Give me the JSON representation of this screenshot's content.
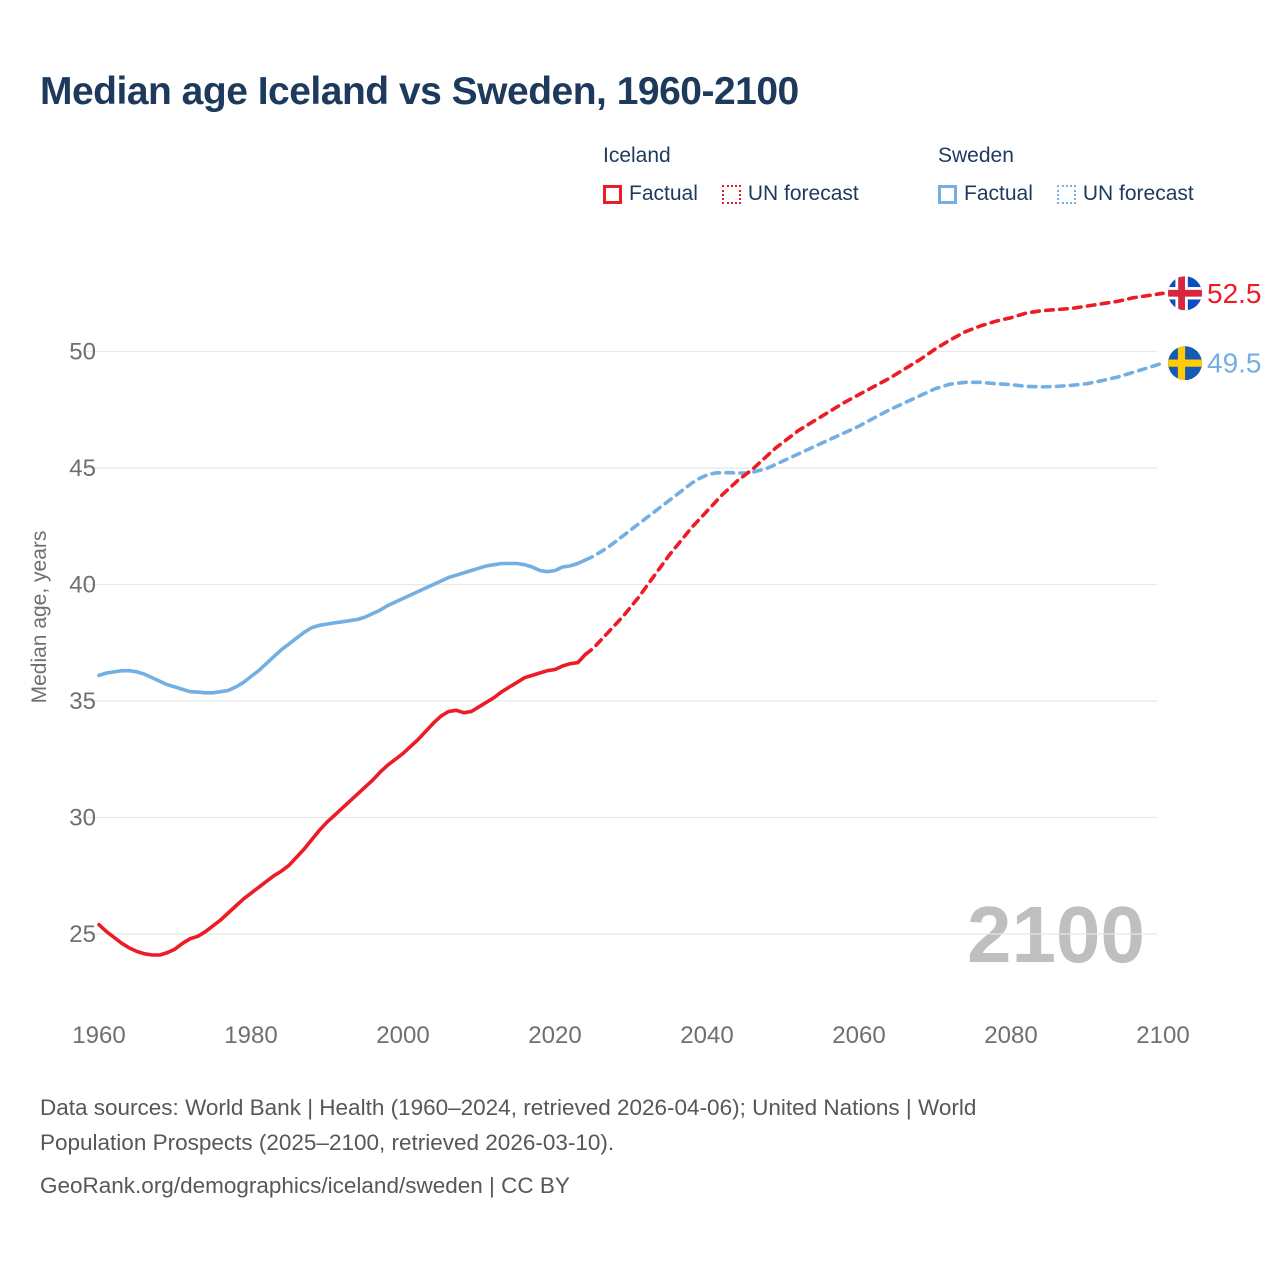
{
  "header": {
    "title": "Median age Iceland vs Sweden, 1960-2100"
  },
  "legend": {
    "groups": [
      {
        "name": "Iceland",
        "color": "#ec1c26",
        "items": [
          {
            "label": "Factual",
            "style": "solid"
          },
          {
            "label": "UN forecast",
            "style": "dashed"
          }
        ]
      },
      {
        "name": "Sweden",
        "color": "#74afe3",
        "items": [
          {
            "label": "Factual",
            "style": "solid"
          },
          {
            "label": "UN forecast",
            "style": "dashed"
          }
        ]
      }
    ]
  },
  "colors": {
    "accent_navy": "#1d3a5c",
    "tick_gray": "#6f6f6f",
    "grid": "#e8e8e8",
    "watermark": "#bfbfbf",
    "iceland_red": "#ec1c26",
    "sweden_blue": "#74afe3"
  },
  "chart_data": {
    "type": "line",
    "title": "Median age Iceland vs Sweden, 1960-2100",
    "xlabel": "",
    "ylabel": "Median age, years",
    "xlim": [
      1955,
      2113
    ],
    "ylim": [
      22.5,
      53.5
    ],
    "x_ticks": [
      1960,
      1980,
      2000,
      2020,
      2040,
      2060,
      2080,
      2100
    ],
    "y_ticks": [
      25,
      30,
      35,
      40,
      45,
      50
    ],
    "grid": "horizontal",
    "legend_position": "top",
    "watermark": "2100",
    "series": [
      {
        "name": "Iceland Factual",
        "country": "Iceland",
        "kind": "Factual",
        "color": "#ec1c26",
        "dash": "solid",
        "points": [
          [
            1960,
            25.4
          ],
          [
            1961,
            25.1
          ],
          [
            1962,
            24.85
          ],
          [
            1963,
            24.6
          ],
          [
            1964,
            24.4
          ],
          [
            1965,
            24.25
          ],
          [
            1966,
            24.15
          ],
          [
            1967,
            24.1
          ],
          [
            1968,
            24.1
          ],
          [
            1969,
            24.2
          ],
          [
            1970,
            24.35
          ],
          [
            1971,
            24.6
          ],
          [
            1972,
            24.8
          ],
          [
            1973,
            24.9
          ],
          [
            1974,
            25.1
          ],
          [
            1975,
            25.35
          ],
          [
            1976,
            25.6
          ],
          [
            1977,
            25.9
          ],
          [
            1978,
            26.2
          ],
          [
            1979,
            26.5
          ],
          [
            1980,
            26.75
          ],
          [
            1981,
            27.0
          ],
          [
            1982,
            27.25
          ],
          [
            1983,
            27.5
          ],
          [
            1984,
            27.7
          ],
          [
            1985,
            27.95
          ],
          [
            1986,
            28.3
          ],
          [
            1987,
            28.65
          ],
          [
            1988,
            29.05
          ],
          [
            1989,
            29.45
          ],
          [
            1990,
            29.8
          ],
          [
            1991,
            30.1
          ],
          [
            1992,
            30.4
          ],
          [
            1993,
            30.7
          ],
          [
            1994,
            31.0
          ],
          [
            1995,
            31.3
          ],
          [
            1996,
            31.6
          ],
          [
            1997,
            31.95
          ],
          [
            1998,
            32.25
          ],
          [
            1999,
            32.5
          ],
          [
            2000,
            32.75
          ],
          [
            2001,
            33.05
          ],
          [
            2002,
            33.35
          ],
          [
            2003,
            33.7
          ],
          [
            2004,
            34.05
          ],
          [
            2005,
            34.35
          ],
          [
            2006,
            34.55
          ],
          [
            2007,
            34.6
          ],
          [
            2008,
            34.5
          ],
          [
            2009,
            34.55
          ],
          [
            2010,
            34.75
          ],
          [
            2011,
            34.95
          ],
          [
            2012,
            35.15
          ],
          [
            2013,
            35.4
          ],
          [
            2014,
            35.6
          ],
          [
            2015,
            35.8
          ],
          [
            2016,
            36.0
          ],
          [
            2017,
            36.1
          ],
          [
            2018,
            36.2
          ],
          [
            2019,
            36.3
          ],
          [
            2020,
            36.35
          ],
          [
            2021,
            36.5
          ],
          [
            2022,
            36.6
          ],
          [
            2023,
            36.65
          ],
          [
            2024,
            37.0
          ]
        ]
      },
      {
        "name": "Iceland UN forecast",
        "country": "Iceland",
        "kind": "UN forecast",
        "color": "#ec1c26",
        "dash": "dashed",
        "points": [
          [
            2025,
            37.25
          ],
          [
            2026,
            37.6
          ],
          [
            2027,
            37.95
          ],
          [
            2028,
            38.3
          ],
          [
            2029,
            38.65
          ],
          [
            2030,
            39.05
          ],
          [
            2031,
            39.45
          ],
          [
            2032,
            39.9
          ],
          [
            2033,
            40.35
          ],
          [
            2034,
            40.8
          ],
          [
            2035,
            41.25
          ],
          [
            2036,
            41.65
          ],
          [
            2037,
            42.05
          ],
          [
            2038,
            42.45
          ],
          [
            2039,
            42.8
          ],
          [
            2040,
            43.15
          ],
          [
            2041,
            43.5
          ],
          [
            2042,
            43.85
          ],
          [
            2043,
            44.15
          ],
          [
            2044,
            44.45
          ],
          [
            2045,
            44.7
          ],
          [
            2046,
            44.95
          ],
          [
            2047,
            45.25
          ],
          [
            2048,
            45.55
          ],
          [
            2049,
            45.85
          ],
          [
            2050,
            46.1
          ],
          [
            2052,
            46.6
          ],
          [
            2054,
            47.0
          ],
          [
            2056,
            47.4
          ],
          [
            2058,
            47.8
          ],
          [
            2060,
            48.15
          ],
          [
            2062,
            48.5
          ],
          [
            2064,
            48.85
          ],
          [
            2066,
            49.25
          ],
          [
            2068,
            49.65
          ],
          [
            2070,
            50.1
          ],
          [
            2072,
            50.5
          ],
          [
            2074,
            50.85
          ],
          [
            2076,
            51.1
          ],
          [
            2078,
            51.3
          ],
          [
            2080,
            51.45
          ],
          [
            2082,
            51.65
          ],
          [
            2084,
            51.75
          ],
          [
            2086,
            51.8
          ],
          [
            2088,
            51.85
          ],
          [
            2090,
            51.95
          ],
          [
            2092,
            52.05
          ],
          [
            2094,
            52.15
          ],
          [
            2096,
            52.3
          ],
          [
            2098,
            52.4
          ],
          [
            2100,
            52.5
          ]
        ]
      },
      {
        "name": "Sweden Factual",
        "country": "Sweden",
        "kind": "Factual",
        "color": "#74afe3",
        "dash": "solid",
        "points": [
          [
            1960,
            36.1
          ],
          [
            1961,
            36.2
          ],
          [
            1962,
            36.25
          ],
          [
            1963,
            36.3
          ],
          [
            1964,
            36.3
          ],
          [
            1965,
            36.25
          ],
          [
            1966,
            36.15
          ],
          [
            1967,
            36.0
          ],
          [
            1968,
            35.85
          ],
          [
            1969,
            35.7
          ],
          [
            1970,
            35.6
          ],
          [
            1971,
            35.5
          ],
          [
            1972,
            35.4
          ],
          [
            1973,
            35.38
          ],
          [
            1974,
            35.35
          ],
          [
            1975,
            35.35
          ],
          [
            1976,
            35.4
          ],
          [
            1977,
            35.45
          ],
          [
            1978,
            35.6
          ],
          [
            1979,
            35.8
          ],
          [
            1980,
            36.05
          ],
          [
            1981,
            36.3
          ],
          [
            1982,
            36.6
          ],
          [
            1983,
            36.9
          ],
          [
            1984,
            37.2
          ],
          [
            1985,
            37.45
          ],
          [
            1986,
            37.7
          ],
          [
            1987,
            37.95
          ],
          [
            1988,
            38.15
          ],
          [
            1989,
            38.25
          ],
          [
            1990,
            38.3
          ],
          [
            1991,
            38.35
          ],
          [
            1992,
            38.4
          ],
          [
            1993,
            38.45
          ],
          [
            1994,
            38.5
          ],
          [
            1995,
            38.6
          ],
          [
            1996,
            38.75
          ],
          [
            1997,
            38.9
          ],
          [
            1998,
            39.1
          ],
          [
            1999,
            39.25
          ],
          [
            2000,
            39.4
          ],
          [
            2001,
            39.55
          ],
          [
            2002,
            39.7
          ],
          [
            2003,
            39.85
          ],
          [
            2004,
            40.0
          ],
          [
            2005,
            40.15
          ],
          [
            2006,
            40.3
          ],
          [
            2007,
            40.4
          ],
          [
            2008,
            40.5
          ],
          [
            2009,
            40.6
          ],
          [
            2010,
            40.7
          ],
          [
            2011,
            40.8
          ],
          [
            2012,
            40.85
          ],
          [
            2013,
            40.9
          ],
          [
            2014,
            40.9
          ],
          [
            2015,
            40.9
          ],
          [
            2016,
            40.85
          ],
          [
            2017,
            40.75
          ],
          [
            2018,
            40.6
          ],
          [
            2019,
            40.55
          ],
          [
            2020,
            40.6
          ],
          [
            2021,
            40.75
          ],
          [
            2022,
            40.8
          ],
          [
            2023,
            40.9
          ],
          [
            2024,
            41.05
          ]
        ]
      },
      {
        "name": "Sweden UN forecast",
        "country": "Sweden",
        "kind": "UN forecast",
        "color": "#74afe3",
        "dash": "dashed",
        "points": [
          [
            2025,
            41.2
          ],
          [
            2026,
            41.4
          ],
          [
            2027,
            41.6
          ],
          [
            2028,
            41.85
          ],
          [
            2029,
            42.1
          ],
          [
            2030,
            42.35
          ],
          [
            2031,
            42.6
          ],
          [
            2032,
            42.85
          ],
          [
            2033,
            43.1
          ],
          [
            2034,
            43.35
          ],
          [
            2035,
            43.6
          ],
          [
            2036,
            43.85
          ],
          [
            2037,
            44.1
          ],
          [
            2038,
            44.35
          ],
          [
            2039,
            44.55
          ],
          [
            2040,
            44.7
          ],
          [
            2041,
            44.78
          ],
          [
            2042,
            44.8
          ],
          [
            2043,
            44.8
          ],
          [
            2044,
            44.78
          ],
          [
            2045,
            44.78
          ],
          [
            2046,
            44.82
          ],
          [
            2047,
            44.9
          ],
          [
            2048,
            45.0
          ],
          [
            2049,
            45.15
          ],
          [
            2050,
            45.3
          ],
          [
            2052,
            45.6
          ],
          [
            2054,
            45.9
          ],
          [
            2056,
            46.2
          ],
          [
            2058,
            46.5
          ],
          [
            2060,
            46.8
          ],
          [
            2062,
            47.15
          ],
          [
            2064,
            47.5
          ],
          [
            2066,
            47.8
          ],
          [
            2068,
            48.1
          ],
          [
            2070,
            48.4
          ],
          [
            2072,
            48.6
          ],
          [
            2074,
            48.68
          ],
          [
            2076,
            48.68
          ],
          [
            2078,
            48.62
          ],
          [
            2080,
            48.58
          ],
          [
            2082,
            48.5
          ],
          [
            2084,
            48.48
          ],
          [
            2086,
            48.5
          ],
          [
            2088,
            48.55
          ],
          [
            2090,
            48.62
          ],
          [
            2092,
            48.75
          ],
          [
            2094,
            48.9
          ],
          [
            2096,
            49.1
          ],
          [
            2098,
            49.3
          ],
          [
            2100,
            49.5
          ]
        ]
      }
    ],
    "end_labels": [
      {
        "series": "Iceland",
        "value": "52.5",
        "value_num": 52.5,
        "flag": "iceland",
        "flag_colors": {
          "field": "#0d4dc3",
          "cross": "#d7263d",
          "fimbriation": "#ffffff"
        }
      },
      {
        "series": "Sweden",
        "value": "49.5",
        "value_num": 49.5,
        "flag": "sweden",
        "flag_colors": {
          "field": "#155bb5",
          "cross": "#fecc00"
        }
      }
    ]
  },
  "footer": {
    "sources_line1": "Data sources: World Bank | Health (1960–2024, retrieved 2026-04-06); United Nations | World",
    "sources_line2": "Population Prospects (2025–2100, retrieved 2026-03-10).",
    "attribution": "GeoRank.org/demographics/iceland/sweden | CC BY"
  }
}
